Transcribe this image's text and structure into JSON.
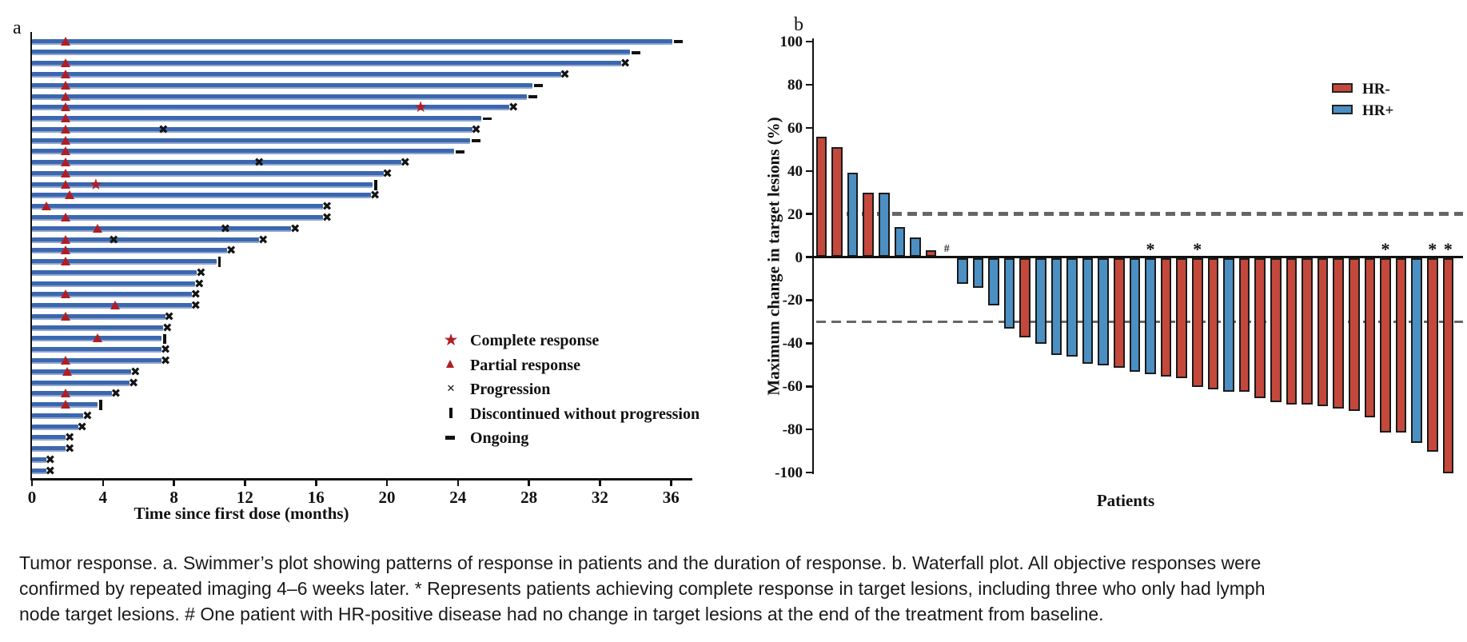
{
  "colors": {
    "swimmer_bar_blue": "#3b67ae",
    "swimmer_bar_blue_edge": "#8fa6cf",
    "marker_red": "#b01e23",
    "waterfall_red": "#c4483b",
    "waterfall_blue": "#4b8fc3",
    "bar_border": "#1b1b1b",
    "dashed_gray": "#666666",
    "axis_black": "#111111"
  },
  "chart_data": [
    {
      "type": "swimmer",
      "panel_label": "a",
      "xlabel": "Time since first dose (months)",
      "x_ticks": [
        0,
        4,
        8,
        12,
        16,
        20,
        24,
        28,
        32,
        36
      ],
      "xlim": [
        0,
        37.3
      ],
      "legend": [
        {
          "symbol": "complete-response-star",
          "label": "Complete response"
        },
        {
          "symbol": "partial-response-triangle",
          "label": "Partial response"
        },
        {
          "symbol": "progression-x",
          "label": "Progression"
        },
        {
          "symbol": "discontinued-bar",
          "label": "Discontinued without progression"
        },
        {
          "symbol": "ongoing-dash",
          "label": "Ongoing"
        }
      ],
      "bars": [
        {
          "duration": 36.1,
          "end": "ongoing",
          "partial_response": 1.9
        },
        {
          "duration": 33.7,
          "end": "ongoing"
        },
        {
          "duration": 33.2,
          "end": "progression",
          "partial_response": 1.9
        },
        {
          "duration": 29.8,
          "end": "progression",
          "partial_response": 1.9
        },
        {
          "duration": 28.2,
          "end": "ongoing",
          "partial_response": 1.9
        },
        {
          "duration": 27.9,
          "end": "ongoing",
          "partial_response": 1.9
        },
        {
          "duration": 26.9,
          "end": "progression",
          "partial_response": 1.9,
          "complete_response": 21.9
        },
        {
          "duration": 25.3,
          "end": "ongoing",
          "partial_response": 1.9
        },
        {
          "duration": 24.8,
          "end": "progression",
          "partial_response": 1.9,
          "progression_marks": [
            7.4
          ]
        },
        {
          "duration": 24.7,
          "end": "ongoing",
          "partial_response": 1.9
        },
        {
          "duration": 23.8,
          "end": "ongoing",
          "partial_response": 1.9
        },
        {
          "duration": 20.8,
          "end": "progression",
          "partial_response": 1.9,
          "progression_marks": [
            12.8
          ]
        },
        {
          "duration": 19.8,
          "end": "progression",
          "partial_response": 1.9
        },
        {
          "duration": 19.2,
          "end": "discontinued",
          "partial_response": 1.9,
          "complete_response": 3.6
        },
        {
          "duration": 19.1,
          "end": "progression",
          "partial_response": 2.1
        },
        {
          "duration": 16.4,
          "end": "progression",
          "partial_response": 0.8
        },
        {
          "duration": 16.4,
          "end": "progression",
          "partial_response": 1.9
        },
        {
          "duration": 14.6,
          "end": "progression",
          "partial_response": 3.7,
          "progression_marks": [
            10.9
          ]
        },
        {
          "duration": 12.8,
          "end": "progression",
          "partial_response": 1.9,
          "progression_marks": [
            4.6
          ]
        },
        {
          "duration": 11.0,
          "end": "progression",
          "partial_response": 1.9
        },
        {
          "duration": 10.4,
          "end": "discontinued",
          "partial_response": 1.9
        },
        {
          "duration": 9.3,
          "end": "progression"
        },
        {
          "duration": 9.2,
          "end": "progression"
        },
        {
          "duration": 9.0,
          "end": "progression",
          "partial_response": 1.9
        },
        {
          "duration": 9.0,
          "end": "progression",
          "partial_response": 4.7
        },
        {
          "duration": 7.5,
          "end": "progression",
          "partial_response": 1.9
        },
        {
          "duration": 7.4,
          "end": "progression"
        },
        {
          "duration": 7.3,
          "end": "discontinued",
          "partial_response": 3.7
        },
        {
          "duration": 7.3,
          "end": "progression"
        },
        {
          "duration": 7.3,
          "end": "progression",
          "partial_response": 1.9
        },
        {
          "duration": 5.6,
          "end": "progression",
          "partial_response": 2.0
        },
        {
          "duration": 5.5,
          "end": "progression"
        },
        {
          "duration": 4.5,
          "end": "progression",
          "partial_response": 1.9
        },
        {
          "duration": 3.7,
          "end": "discontinued",
          "partial_response": 1.9
        },
        {
          "duration": 2.9,
          "end": "progression"
        },
        {
          "duration": 2.6,
          "end": "progression"
        },
        {
          "duration": 1.9,
          "end": "progression"
        },
        {
          "duration": 1.9,
          "end": "progression"
        },
        {
          "duration": 0.8,
          "end": "progression"
        },
        {
          "duration": 0.8,
          "end": "progression"
        }
      ]
    },
    {
      "type": "bar",
      "subtype": "waterfall",
      "panel_label": "b",
      "ylabel": "Maximum change in target lesions (%)",
      "xlabel": "Patients",
      "ylim": [
        -100,
        100
      ],
      "y_ticks": [
        100,
        80,
        60,
        40,
        20,
        0,
        -20,
        -40,
        -60,
        -80,
        -100
      ],
      "reference_lines": [
        20,
        -30
      ],
      "legend": [
        {
          "label": "HR-",
          "color_key": "waterfall_red"
        },
        {
          "label": "HR+",
          "color_key": "waterfall_blue"
        }
      ],
      "patients": [
        {
          "value": 56,
          "group": "HR-"
        },
        {
          "value": 51,
          "group": "HR-"
        },
        {
          "value": 39,
          "group": "HR+"
        },
        {
          "value": 30,
          "group": "HR-"
        },
        {
          "value": 30,
          "group": "HR+"
        },
        {
          "value": 14,
          "group": "HR+"
        },
        {
          "value": 9,
          "group": "HR+"
        },
        {
          "value": 3,
          "group": "HR-"
        },
        {
          "value": 0,
          "group": "HR+",
          "mark": "#"
        },
        {
          "value": -12,
          "group": "HR+"
        },
        {
          "value": -14,
          "group": "HR+"
        },
        {
          "value": -22,
          "group": "HR+"
        },
        {
          "value": -33,
          "group": "HR+"
        },
        {
          "value": -37,
          "group": "HR-"
        },
        {
          "value": -40,
          "group": "HR+"
        },
        {
          "value": -45,
          "group": "HR+"
        },
        {
          "value": -46,
          "group": "HR+"
        },
        {
          "value": -49,
          "group": "HR+"
        },
        {
          "value": -50,
          "group": "HR+"
        },
        {
          "value": -51,
          "group": "HR-"
        },
        {
          "value": -53,
          "group": "HR+"
        },
        {
          "value": -54,
          "group": "HR+",
          "mark": "*"
        },
        {
          "value": -55,
          "group": "HR-"
        },
        {
          "value": -56,
          "group": "HR-"
        },
        {
          "value": -60,
          "group": "HR-",
          "mark": "*"
        },
        {
          "value": -61,
          "group": "HR-"
        },
        {
          "value": -62,
          "group": "HR+"
        },
        {
          "value": -62,
          "group": "HR-"
        },
        {
          "value": -65,
          "group": "HR-"
        },
        {
          "value": -67,
          "group": "HR-"
        },
        {
          "value": -68,
          "group": "HR-"
        },
        {
          "value": -68,
          "group": "HR-"
        },
        {
          "value": -69,
          "group": "HR-"
        },
        {
          "value": -70,
          "group": "HR-"
        },
        {
          "value": -71,
          "group": "HR-"
        },
        {
          "value": -74,
          "group": "HR-"
        },
        {
          "value": -81,
          "group": "HR-",
          "mark": "*"
        },
        {
          "value": -81,
          "group": "HR-"
        },
        {
          "value": -86,
          "group": "HR+"
        },
        {
          "value": -90,
          "group": "HR-",
          "mark": "*"
        },
        {
          "value": -100,
          "group": "HR-",
          "mark": "*"
        }
      ]
    }
  ],
  "caption": {
    "lines": [
      "Tumor response. a. Swimmer’s plot showing patterns of response in patients and the duration of response. b. Waterfall plot. All objective responses were",
      "confirmed by repeated imaging 4–6 weeks later. * Represents patients achieving complete response in target lesions, including three who only had lymph",
      "node target lesions. # One patient with HR-positive disease had no change in target lesions at the end of the treatment from baseline."
    ]
  }
}
